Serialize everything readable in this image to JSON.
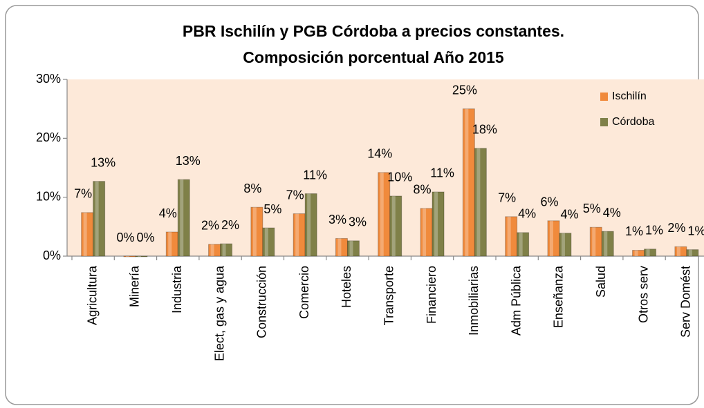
{
  "chart_data": {
    "type": "bar",
    "title": "PBR  Ischilín y PGB Córdoba a precios constantes.",
    "subtitle": "Composición porcentual Año 2015",
    "categories": [
      "Agricultura",
      "Minería",
      "Industria",
      "Elect, gas y agua",
      "Construcción",
      "Comercio",
      "Hoteles",
      "Transporte",
      "Financiero",
      "Inmobiliarias",
      "Adm Pública",
      "Enseñanza",
      "Salud",
      "Otros serv",
      "Serv Domést"
    ],
    "series": [
      {
        "name": "Ischilín",
        "color": "#f08a3c",
        "values": [
          7.4,
          0,
          4.1,
          2.0,
          8.3,
          7.2,
          3.0,
          14.2,
          8.1,
          25.0,
          6.7,
          6.0,
          4.9,
          1.0,
          1.6
        ],
        "value_labels": [
          "7%",
          "0%",
          "4%",
          "2%",
          "8%",
          "7%",
          "3%",
          "14%",
          "8%",
          "25%",
          "7%",
          "6%",
          "5%",
          "1%",
          "2%"
        ]
      },
      {
        "name": "Córdoba",
        "color": "#7f8048",
        "values": [
          12.7,
          0,
          13.0,
          2.1,
          4.8,
          10.6,
          2.6,
          10.2,
          10.9,
          18.3,
          4.0,
          3.9,
          4.2,
          1.2,
          1.1
        ],
        "value_labels": [
          "13%",
          "0%",
          "13%",
          "2%",
          "5%",
          "11%",
          "3%",
          "10%",
          "11%",
          "18%",
          "4%",
          "4%",
          "4%",
          "1%",
          "1%"
        ]
      }
    ],
    "ylim": [
      0,
      30
    ],
    "yticks": [
      {
        "value": 0,
        "label": "0%"
      },
      {
        "value": 10,
        "label": "10%"
      },
      {
        "value": 20,
        "label": "20%"
      },
      {
        "value": 30,
        "label": "30%"
      }
    ],
    "legend": "top-right"
  }
}
